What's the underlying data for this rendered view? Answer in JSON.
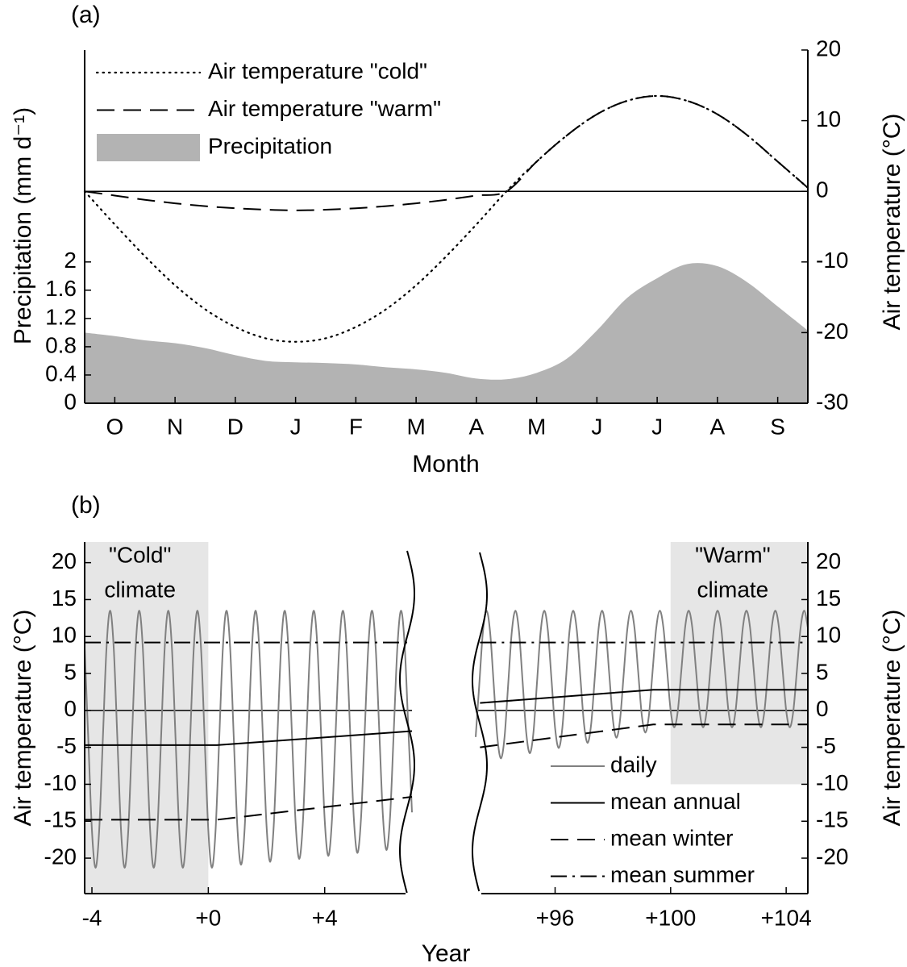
{
  "chart_data": [
    {
      "type": "line",
      "panel_label": "(a)",
      "xlabel": "Month",
      "ylabel": "Precipitation (mm d⁻¹)",
      "y2label": "Air temperature (°C)",
      "legend": "upper left",
      "x": [
        0,
        0.5,
        1,
        1.5,
        2,
        2.5,
        3,
        3.5,
        4,
        4.5,
        5,
        5.5,
        6,
        6.5,
        7,
        7.5,
        8,
        8.5,
        9,
        9.5,
        10,
        10.5,
        11,
        11.5,
        12
      ],
      "xlim": [
        0,
        12
      ],
      "xticks": [
        {
          "value": 0.5,
          "label": "O"
        },
        {
          "value": 1.5,
          "label": "N"
        },
        {
          "value": 2.5,
          "label": "D"
        },
        {
          "value": 3.5,
          "label": "J"
        },
        {
          "value": 4.5,
          "label": "F"
        },
        {
          "value": 5.5,
          "label": "M"
        },
        {
          "value": 6.5,
          "label": "A"
        },
        {
          "value": 7.5,
          "label": "M"
        },
        {
          "value": 8.5,
          "label": "J"
        },
        {
          "value": 9.5,
          "label": "J"
        },
        {
          "value": 10.5,
          "label": "A"
        },
        {
          "value": 11.5,
          "label": "S"
        }
      ],
      "ylim": [
        0,
        5
      ],
      "yticks": [
        0,
        0.4,
        0.8,
        1.2,
        1.6,
        2
      ],
      "y2lim": [
        -30,
        20
      ],
      "y2ticks": [
        -30,
        -20,
        -10,
        0,
        10,
        20
      ],
      "series": [
        {
          "name": "Air temperature \"cold\"",
          "color": "#000000",
          "style": "dotted",
          "axis": "y2",
          "values": [
            0,
            -4.7,
            -9.2,
            -13.3,
            -16.7,
            -19.2,
            -20.8,
            -21.3,
            -20.8,
            -19.2,
            -16.7,
            -13.3,
            -9.2,
            -4.7,
            0,
            4.2,
            7.9,
            10.9,
            12.8,
            13.5,
            12.8,
            10.9,
            7.9,
            4.2,
            0.5
          ]
        },
        {
          "name": "Air temperature \"warm\"",
          "color": "#000000",
          "style": "dashed",
          "axis": "y2",
          "values": [
            0,
            -0.6,
            -1.2,
            -1.7,
            -2.1,
            -2.4,
            -2.6,
            -2.7,
            -2.6,
            -2.4,
            -2.1,
            -1.7,
            -1.2,
            -0.6,
            0,
            4.2,
            7.9,
            10.9,
            12.8,
            13.5,
            12.8,
            10.9,
            7.9,
            4.2,
            0.5
          ]
        },
        {
          "name": "Precipitation",
          "color": "#b3b3b3",
          "style": "area",
          "axis": "y",
          "values": [
            1.0,
            0.95,
            0.89,
            0.85,
            0.78,
            0.68,
            0.6,
            0.58,
            0.57,
            0.55,
            0.51,
            0.48,
            0.43,
            0.35,
            0.34,
            0.43,
            0.63,
            1.03,
            1.49,
            1.77,
            1.97,
            1.94,
            1.71,
            1.37,
            1.03
          ]
        }
      ]
    },
    {
      "type": "line",
      "panel_label": "(b)",
      "xlabel": "Year",
      "ylabel": "Air temperature (°C)",
      "y2label": "Air temperature (°C)",
      "legend": "lower right",
      "shade_color": "#e6e6e6",
      "ylim": [
        -24.8,
        22.8
      ],
      "yticks": [
        20,
        15,
        10,
        5,
        0,
        -5,
        -10,
        -15,
        -20
      ],
      "y2lim": [
        -24.8,
        22.8
      ],
      "y2ticks": [
        20,
        15,
        10,
        5,
        0,
        -5,
        -10,
        -15,
        -20
      ],
      "segments": [
        {
          "xlim": [
            -4.25,
            7
          ],
          "xticks": [
            -4,
            {
              "value": 0,
              "label": "+0"
            },
            {
              "value": 4,
              "label": "+4"
            }
          ],
          "shaded": {
            "x": [
              -4.25,
              0
            ],
            "y": [
              -24.8,
              22.8
            ],
            "label": [
              "\"Cold\"",
              "climate"
            ]
          }
        },
        {
          "xlim": [
            93.25,
            104.75
          ],
          "xticks": [
            {
              "value": 96,
              "label": "+96"
            },
            {
              "value": 100,
              "label": "+100"
            },
            {
              "value": 104,
              "label": "+104"
            }
          ],
          "shaded": {
            "x": [
              100,
              104.75
            ],
            "y": [
              -10,
              22.8
            ],
            "label": [
              "\"Warm\"",
              "climate"
            ]
          }
        }
      ],
      "series": [
        {
          "name": "daily",
          "color": "#808080",
          "style": "solid",
          "smooth": true,
          "pieces": [
            {
              "x": [
                -4.25,
                -4.125,
                -4,
                -3.875,
                -3.75,
                -3.625,
                -3.5,
                -3.375,
                -3.25,
                -3.125,
                -3,
                -2.875,
                -2.75,
                -2.625,
                -2.5,
                -2.375,
                -2.25,
                -2.125,
                -2,
                -1.875,
                -1.75,
                -1.625,
                -1.5,
                -1.375,
                -1.25,
                -1.125,
                -1,
                -0.875,
                -0.75,
                -0.625,
                -0.5,
                -0.375,
                -0.25,
                -0.125,
                0,
                0.125,
                0.25,
                0.375,
                0.5,
                0.625,
                0.75,
                0.875,
                1,
                1.125,
                1.25,
                1.375,
                1.5,
                1.625,
                1.75,
                1.875,
                2,
                2.125,
                2.25,
                2.375,
                2.5,
                2.625,
                2.75,
                2.875,
                3,
                3.125,
                3.25,
                3.375,
                3.5,
                3.625,
                3.75,
                3.875,
                4,
                4.125,
                4.25,
                4.375,
                4.5,
                4.625,
                4.75,
                4.875,
                5,
                5.125,
                5.25,
                5.375,
                5.5,
                5.625,
                5.75,
                5.875,
                6,
                6.125,
                6.25,
                6.375,
                6.5,
                6.625,
                6.75,
                6.875,
                7
              ],
              "values": [
                8.4,
                -3.9,
                -16.2,
                -21.3,
                -16.2,
                -3.9,
                8.4,
                13.5,
                8.4,
                -3.9,
                -16.2,
                -21.3,
                -16.2,
                -3.9,
                8.4,
                13.5,
                8.4,
                -3.9,
                -16.2,
                -21.3,
                -16.2,
                -3.9,
                8.4,
                13.5,
                8.4,
                -3.9,
                -16.2,
                -21.3,
                -16.2,
                -3.9,
                8.4,
                13.5,
                8.4,
                -3.9,
                -16.2,
                -21.3,
                -16.2,
                -3.9,
                8.4,
                13.5,
                8.5,
                -3.7,
                -15.9,
                -20.9,
                -15.9,
                -3.7,
                8.5,
                13.5,
                8.5,
                -3.5,
                -15.5,
                -20.5,
                -15.5,
                -3.5,
                8.5,
                13.5,
                8.6,
                -3.3,
                -15.2,
                -20.1,
                -15.2,
                -3.3,
                8.6,
                13.5,
                8.6,
                -3.1,
                -14.8,
                -19.7,
                -14.8,
                -3.1,
                8.6,
                13.5,
                8.7,
                -2.9,
                -14.5,
                -19.3,
                -14.5,
                -2.9,
                8.7,
                13.5,
                8.7,
                -2.7,
                -14.2,
                -18.9,
                -14.2,
                -2.7,
                8.7,
                13.5,
                8.7,
                -2.5,
                -13.8
              ]
            },
            {
              "x": [
                93.25,
                93.375,
                93.5,
                93.625,
                93.75,
                93.875,
                94,
                94.125,
                94.25,
                94.375,
                94.5,
                94.625,
                94.75,
                94.875,
                95,
                95.125,
                95.25,
                95.375,
                95.5,
                95.625,
                95.75,
                95.875,
                96,
                96.125,
                96.25,
                96.375,
                96.5,
                96.625,
                96.75,
                96.875,
                97,
                97.125,
                97.25,
                97.375,
                97.5,
                97.625,
                97.75,
                97.875,
                98,
                98.125,
                98.25,
                98.375,
                98.5,
                98.625,
                98.75,
                98.875,
                99,
                99.125,
                99.25,
                99.375,
                99.5,
                99.625,
                99.75,
                99.875,
                100,
                100.125,
                100.25,
                100.375,
                100.5,
                100.625,
                100.75,
                100.875,
                101,
                101.125,
                101.25,
                101.375,
                101.5,
                101.625,
                101.75,
                101.875,
                102,
                102.125,
                102.25,
                102.375,
                102.5,
                102.625,
                102.75,
                102.875,
                103,
                103.125,
                103.25,
                103.375,
                103.5,
                103.625,
                103.75,
                103.875,
                104,
                104.125,
                104.25,
                104.375,
                104.5,
                104.625,
                104.75
              ],
              "values": [
                -3.6,
                3.5,
                10.6,
                13.5,
                10.6,
                3.5,
                -3.6,
                -6.5,
                -3.6,
                3.5,
                10.6,
                13.5,
                10.7,
                3.9,
                -3.0,
                -5.8,
                -3.0,
                3.9,
                10.7,
                13.5,
                10.8,
                4.2,
                -2.4,
                -5.1,
                -2.4,
                4.2,
                10.8,
                13.5,
                10.9,
                4.5,
                -1.8,
                -4.4,
                -1.8,
                4.5,
                10.9,
                13.5,
                11.0,
                4.9,
                -1.2,
                -3.7,
                -1.2,
                4.9,
                11.0,
                13.5,
                11.1,
                5.3,
                -0.6,
                -3.0,
                -0.6,
                5.3,
                11.1,
                13.5,
                11.2,
                5.6,
                0,
                -2.3,
                0,
                5.6,
                11.2,
                13.5,
                11.2,
                5.6,
                0,
                -2.3,
                0,
                5.6,
                11.2,
                13.5,
                11.2,
                5.6,
                0,
                -2.3,
                0,
                5.6,
                11.2,
                13.5,
                11.2,
                5.6,
                0,
                -2.3,
                0,
                5.6,
                11.2,
                13.5,
                11.2,
                5.6,
                0,
                -2.3,
                0,
                5.6,
                11.2,
                13.5,
                11.2
              ]
            }
          ]
        },
        {
          "name": "mean annual",
          "color": "#000000",
          "style": "solid",
          "pieces": [
            {
              "x": [
                -4.25,
                0.3,
                7
              ],
              "values": [
                -4.7,
                -4.7,
                -2.8
              ]
            },
            {
              "x": [
                93.4,
                99.4,
                104.75
              ],
              "values": [
                1.0,
                2.8,
                2.8
              ]
            }
          ]
        },
        {
          "name": "mean winter",
          "color": "#000000",
          "style": "dashed",
          "pieces": [
            {
              "x": [
                -4.25,
                0.3,
                7
              ],
              "values": [
                -14.8,
                -14.8,
                -11.7
              ]
            },
            {
              "x": [
                93.4,
                99.4,
                104.75
              ],
              "values": [
                -5.0,
                -1.9,
                -1.9
              ]
            }
          ]
        },
        {
          "name": "mean summer",
          "color": "#000000",
          "style": "dashdot",
          "pieces": [
            {
              "x": [
                -4.25,
                7
              ],
              "values": [
                9.2,
                9.2
              ]
            },
            {
              "x": [
                93.4,
                104.75
              ],
              "values": [
                9.2,
                9.2
              ]
            }
          ]
        }
      ]
    }
  ]
}
